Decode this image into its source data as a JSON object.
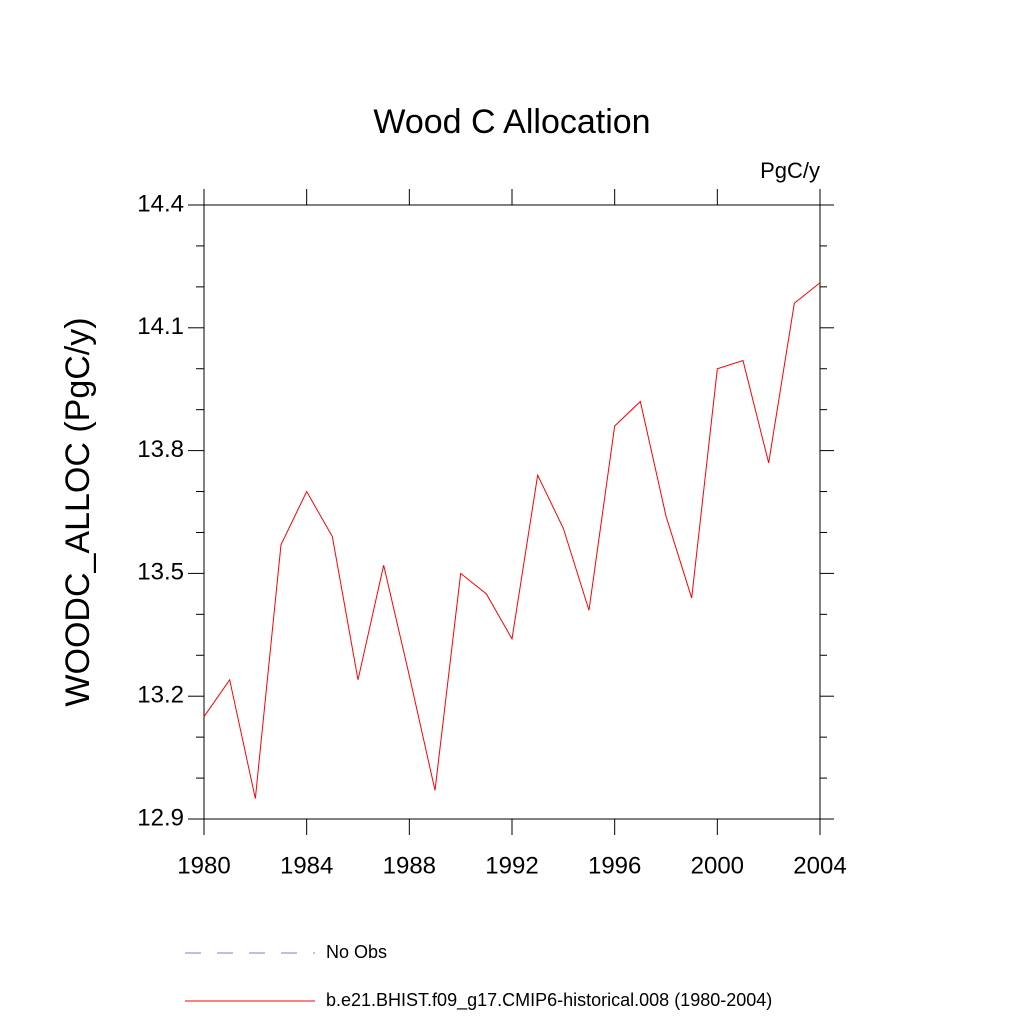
{
  "chart_data": {
    "type": "line",
    "title": "Wood C Allocation",
    "units": "PgC/y",
    "ylabel": "WOODC_ALLOC  (PgC/y)",
    "x": [
      1980,
      1981,
      1982,
      1983,
      1984,
      1985,
      1986,
      1987,
      1988,
      1989,
      1990,
      1991,
      1992,
      1993,
      1994,
      1995,
      1996,
      1997,
      1998,
      1999,
      2000,
      2001,
      2002,
      2003,
      2004
    ],
    "series": [
      {
        "name": "b.e21.BHIST.f09_g17.CMIP6-historical.008 (1980-2004)",
        "color": "#ff0000",
        "values": [
          13.15,
          13.24,
          12.95,
          13.57,
          13.7,
          13.59,
          13.24,
          13.52,
          13.25,
          12.97,
          13.5,
          13.45,
          13.34,
          13.74,
          13.61,
          13.41,
          13.86,
          13.92,
          13.64,
          13.44,
          14.0,
          14.02,
          13.77,
          14.16,
          14.21
        ]
      }
    ],
    "reference_legend": [
      {
        "name": "No Obs",
        "color": "#8080c0",
        "dash": true
      }
    ],
    "xlim": [
      1980,
      2004
    ],
    "xticks": [
      1980,
      1984,
      1988,
      1992,
      1996,
      2000,
      2004
    ],
    "ylim": [
      12.9,
      14.4
    ],
    "yticks": [
      12.9,
      13.2,
      13.5,
      13.8,
      14.1,
      14.4
    ],
    "yminorticks": [
      13.0,
      13.1,
      13.3,
      13.4,
      13.6,
      13.7,
      13.9,
      14.0,
      14.2,
      14.3
    ],
    "grid": false
  }
}
